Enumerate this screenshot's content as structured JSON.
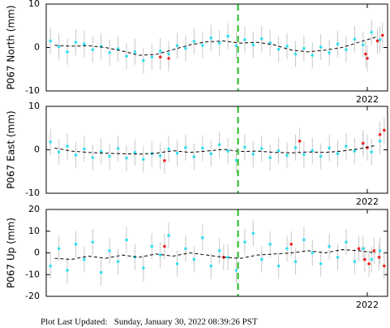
{
  "chart_data": [
    {
      "type": "scatter",
      "ylabel": "P067 North (mm)",
      "xlim": [
        2018.2,
        2022.24
      ],
      "xticks": [
        2022
      ],
      "ylim": [
        -10,
        10
      ],
      "yticks": [
        -10,
        0,
        10
      ],
      "vline": 2020.47,
      "vline_color": "#22bb22",
      "series": [
        {
          "kind": "points",
          "color": "#33e0f0",
          "error": 3,
          "x": [
            2018.25,
            2018.35,
            2018.45,
            2018.55,
            2018.65,
            2018.75,
            2018.85,
            2018.95,
            2019.05,
            2019.15,
            2019.25,
            2019.35,
            2019.45,
            2019.55,
            2019.65,
            2019.75,
            2019.85,
            2019.95,
            2020.05,
            2020.15,
            2020.25,
            2020.35,
            2020.45,
            2020.55,
            2020.65,
            2020.75,
            2020.85,
            2020.95,
            2021.05,
            2021.15,
            2021.25,
            2021.35,
            2021.45,
            2021.55,
            2021.65,
            2021.75,
            2021.85,
            2021.95,
            2022.05,
            2022.15
          ],
          "values": [
            1.5,
            0.2,
            -1.0,
            1.2,
            0.8,
            -0.5,
            0.3,
            -1.2,
            -0.3,
            -2.0,
            -1.0,
            -3.0,
            -2.2,
            -0.8,
            -1.5,
            0.4,
            -0.2,
            1.4,
            0.5,
            2.2,
            1.0,
            2.6,
            0.4,
            1.8,
            0.6,
            2.0,
            1.1,
            -0.4,
            0.3,
            -1.5,
            -0.2,
            -1.8,
            0.1,
            -1.2,
            0.8,
            -0.5,
            1.9,
            0.6,
            3.5,
            1.8
          ]
        },
        {
          "kind": "points",
          "color": "#ee2222",
          "error": 3,
          "x": [
            2019.55,
            2019.65,
            2021.98,
            2022.0,
            2022.12,
            2022.18
          ],
          "values": [
            -2.2,
            -2.5,
            -1.5,
            -2.5,
            1.5,
            2.8
          ]
        },
        {
          "kind": "line",
          "color": "#000000",
          "x": [
            2018.3,
            2018.5,
            2018.7,
            2018.9,
            2019.1,
            2019.3,
            2019.5,
            2019.7,
            2019.9,
            2020.1,
            2020.3,
            2020.5,
            2020.7,
            2020.9,
            2021.1,
            2021.3,
            2021.5,
            2021.7,
            2021.9,
            2022.1
          ],
          "values": [
            0.5,
            0.3,
            0.4,
            0,
            -0.8,
            -1.8,
            -1.6,
            -0.5,
            0.6,
            1.3,
            1.5,
            1.0,
            1.2,
            0.6,
            -0.6,
            -1.0,
            -0.6,
            0,
            1.2,
            2.4
          ]
        }
      ]
    },
    {
      "type": "scatter",
      "ylabel": "P067 East (mm)",
      "xlim": [
        2018.2,
        2022.24
      ],
      "xticks": [
        2022
      ],
      "ylim": [
        -10,
        10
      ],
      "yticks": [
        -10,
        0,
        10
      ],
      "vline": 2020.47,
      "vline_color": "#22bb22",
      "series": [
        {
          "kind": "points",
          "color": "#33e0f0",
          "error": 3,
          "x": [
            2018.25,
            2018.35,
            2018.45,
            2018.55,
            2018.65,
            2018.75,
            2018.85,
            2018.95,
            2019.05,
            2019.15,
            2019.25,
            2019.35,
            2019.45,
            2019.55,
            2019.65,
            2019.75,
            2019.85,
            2019.95,
            2020.05,
            2020.15,
            2020.25,
            2020.35,
            2020.45,
            2020.55,
            2020.65,
            2020.75,
            2020.85,
            2020.95,
            2021.05,
            2021.15,
            2021.25,
            2021.35,
            2021.45,
            2021.55,
            2021.65,
            2021.75,
            2021.85,
            2021.95,
            2022.05,
            2022.15
          ],
          "values": [
            1.8,
            -0.5,
            0.8,
            -1.2,
            0.2,
            -1.8,
            -0.4,
            -1.5,
            0.3,
            -1.9,
            -0.6,
            -2.2,
            -0.9,
            -1.4,
            0.2,
            -0.8,
            0.5,
            -1.6,
            0.4,
            -0.9,
            1.2,
            -0.3,
            -2.4,
            0.6,
            -1.0,
            0.3,
            -1.8,
            -0.2,
            -1.3,
            0.5,
            -1.1,
            -0.2,
            -1.5,
            0.4,
            -0.9,
            0.8,
            -0.3,
            1.4,
            -0.5,
            2.0
          ]
        },
        {
          "kind": "points",
          "color": "#ee2222",
          "error": 3,
          "x": [
            2019.6,
            2021.2,
            2021.95,
            2022.0,
            2022.15,
            2022.2
          ],
          "values": [
            -2.5,
            2.0,
            1.5,
            0.5,
            3.5,
            4.5
          ]
        },
        {
          "kind": "line",
          "color": "#000000",
          "x": [
            2018.3,
            2018.5,
            2018.7,
            2018.9,
            2019.1,
            2019.3,
            2019.5,
            2019.7,
            2019.9,
            2020.1,
            2020.3,
            2020.5,
            2020.7,
            2020.9,
            2021.1,
            2021.3,
            2021.5,
            2021.7,
            2021.9,
            2022.1
          ],
          "values": [
            0.4,
            -0.3,
            -0.6,
            -0.8,
            -0.9,
            -1.0,
            -0.8,
            -0.2,
            -0.6,
            -0.3,
            0.1,
            -0.4,
            -0.3,
            -0.6,
            -0.7,
            -0.5,
            -0.6,
            -0.3,
            0.2,
            1.0
          ]
        }
      ]
    },
    {
      "type": "scatter",
      "ylabel": "P067 Up (mm)",
      "xlim": [
        2018.2,
        2022.24
      ],
      "xticks": [
        2022
      ],
      "ylim": [
        -20,
        20
      ],
      "yticks": [
        -20,
        -10,
        0,
        10,
        20
      ],
      "vline": 2020.47,
      "vline_color": "#22bb22",
      "series": [
        {
          "kind": "points",
          "color": "#33e0f0",
          "error": 6,
          "x": [
            2018.25,
            2018.35,
            2018.45,
            2018.55,
            2018.65,
            2018.75,
            2018.85,
            2018.95,
            2019.05,
            2019.15,
            2019.25,
            2019.35,
            2019.45,
            2019.55,
            2019.65,
            2019.75,
            2019.85,
            2019.95,
            2020.05,
            2020.15,
            2020.25,
            2020.35,
            2020.45,
            2020.55,
            2020.65,
            2020.75,
            2020.85,
            2020.95,
            2021.05,
            2021.15,
            2021.25,
            2021.35,
            2021.45,
            2021.55,
            2021.65,
            2021.75,
            2021.85,
            2021.95,
            2022.05,
            2022.15
          ],
          "values": [
            -6,
            2,
            -8,
            4,
            -3,
            5,
            -9,
            1,
            -4,
            6,
            -2,
            -7,
            3,
            -1,
            8,
            -5,
            2,
            -3,
            7,
            -6,
            1,
            -2,
            -8,
            5,
            9,
            -3,
            4,
            -6,
            2,
            -4,
            6,
            0,
            -5,
            3,
            -2,
            5,
            -4,
            2,
            -3,
            1
          ]
        },
        {
          "kind": "points",
          "color": "#ee2222",
          "error": 6,
          "x": [
            2019.6,
            2020.3,
            2021.1,
            2021.9,
            2021.97,
            2022.02,
            2022.08,
            2022.14,
            2022.2
          ],
          "values": [
            3,
            -2,
            4,
            2,
            -3,
            -5,
            1,
            -2,
            -6
          ]
        },
        {
          "kind": "line",
          "color": "#000000",
          "x": [
            2018.3,
            2018.5,
            2018.7,
            2018.9,
            2019.1,
            2019.3,
            2019.5,
            2019.7,
            2019.9,
            2020.1,
            2020.3,
            2020.5,
            2020.7,
            2020.9,
            2021.1,
            2021.3,
            2021.5,
            2021.7,
            2021.9,
            2022.1
          ],
          "values": [
            -2.5,
            -3,
            -1.5,
            -2.5,
            -1,
            -2,
            -0.5,
            -1.5,
            0,
            -1,
            -2,
            -2.5,
            -1,
            -0.5,
            0,
            1,
            0,
            1.5,
            1,
            0
          ]
        }
      ]
    }
  ],
  "footer": "Plot Last Updated:   Sunday, January 30, 2022 08:39:26 PST"
}
